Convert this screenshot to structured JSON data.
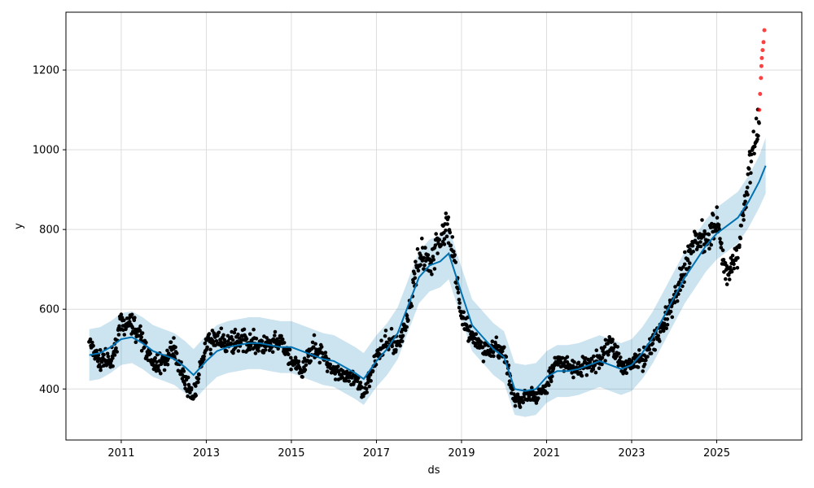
{
  "chart_data": {
    "type": "scatter",
    "xlabel": "ds",
    "ylabel": "y",
    "xlim": [
      2009.7,
      2027.0
    ],
    "ylim": [
      272,
      1345
    ],
    "x_ticks": [
      {
        "value": 2011,
        "label": "2011"
      },
      {
        "value": 2013,
        "label": "2013"
      },
      {
        "value": 2015,
        "label": "2015"
      },
      {
        "value": 2017,
        "label": "2017"
      },
      {
        "value": 2019,
        "label": "2019"
      },
      {
        "value": 2021,
        "label": "2021"
      },
      {
        "value": 2023,
        "label": "2023"
      },
      {
        "value": 2025,
        "label": "2025"
      }
    ],
    "y_ticks": [
      {
        "value": 400,
        "label": "400"
      },
      {
        "value": 600,
        "label": "600"
      },
      {
        "value": 800,
        "label": "800"
      },
      {
        "value": 1000,
        "label": "1000"
      },
      {
        "value": 1200,
        "label": "1200"
      }
    ],
    "grid": true,
    "colors": {
      "observed": "#000000",
      "outlier": "#ff0000",
      "forecast_line": "#0072b2",
      "interval": "#0072b2"
    },
    "forecast": {
      "x": [
        2010.25,
        2010.5,
        2010.75,
        2011.0,
        2011.25,
        2011.5,
        2011.75,
        2012.0,
        2012.25,
        2012.5,
        2012.7,
        2013.0,
        2013.25,
        2013.5,
        2013.75,
        2014.0,
        2014.25,
        2014.5,
        2014.75,
        2015.0,
        2015.25,
        2015.5,
        2015.75,
        2016.0,
        2016.25,
        2016.5,
        2016.7,
        2017.0,
        2017.25,
        2017.5,
        2017.75,
        2018.0,
        2018.25,
        2018.5,
        2018.7,
        2019.0,
        2019.25,
        2019.5,
        2019.75,
        2020.0,
        2020.25,
        2020.5,
        2020.75,
        2021.0,
        2021.25,
        2021.5,
        2021.75,
        2022.0,
        2022.25,
        2022.5,
        2022.75,
        2023.0,
        2023.25,
        2023.5,
        2023.75,
        2024.0,
        2024.25,
        2024.5,
        2024.75,
        2025.0,
        2025.25,
        2025.5,
        2025.75,
        2026.0,
        2026.15
      ],
      "yhat": [
        485,
        490,
        505,
        525,
        530,
        515,
        495,
        485,
        475,
        455,
        435,
        470,
        495,
        505,
        510,
        515,
        515,
        510,
        505,
        505,
        495,
        485,
        475,
        470,
        455,
        440,
        425,
        470,
        500,
        540,
        610,
        680,
        710,
        720,
        740,
        640,
        560,
        530,
        500,
        480,
        400,
        395,
        400,
        430,
        445,
        445,
        450,
        460,
        470,
        460,
        450,
        460,
        490,
        530,
        580,
        630,
        680,
        720,
        760,
        790,
        810,
        830,
        870,
        920,
        960
      ],
      "lower": [
        420,
        425,
        440,
        460,
        465,
        450,
        430,
        420,
        410,
        390,
        370,
        405,
        430,
        440,
        445,
        450,
        450,
        445,
        440,
        440,
        430,
        420,
        410,
        405,
        390,
        375,
        360,
        405,
        435,
        475,
        545,
        615,
        645,
        655,
        675,
        575,
        495,
        465,
        435,
        415,
        335,
        330,
        335,
        365,
        380,
        380,
        385,
        395,
        405,
        395,
        385,
        395,
        425,
        465,
        515,
        565,
        615,
        655,
        695,
        725,
        745,
        765,
        805,
        855,
        890
      ],
      "upper": [
        550,
        555,
        570,
        590,
        595,
        580,
        560,
        550,
        540,
        520,
        500,
        535,
        560,
        570,
        575,
        580,
        580,
        575,
        570,
        570,
        560,
        550,
        540,
        535,
        520,
        505,
        490,
        535,
        565,
        605,
        675,
        745,
        775,
        785,
        805,
        705,
        625,
        595,
        565,
        545,
        465,
        460,
        465,
        495,
        510,
        510,
        515,
        525,
        535,
        525,
        515,
        525,
        555,
        595,
        645,
        695,
        745,
        785,
        825,
        855,
        875,
        895,
        935,
        985,
        1030
      ]
    },
    "observed": {
      "x": [
        2010.25,
        2010.5,
        2010.75,
        2011.0,
        2011.25,
        2011.5,
        2011.75,
        2012.0,
        2012.25,
        2012.5,
        2012.7,
        2013.0,
        2013.25,
        2013.5,
        2013.75,
        2014.0,
        2014.25,
        2014.5,
        2014.75,
        2015.0,
        2015.25,
        2015.5,
        2015.75,
        2016.0,
        2016.25,
        2016.5,
        2016.7,
        2017.0,
        2017.25,
        2017.5,
        2017.75,
        2018.0,
        2018.25,
        2018.5,
        2018.7,
        2019.0,
        2019.25,
        2019.5,
        2019.75,
        2020.0,
        2020.25,
        2020.5,
        2020.75,
        2021.0,
        2021.25,
        2021.5,
        2021.75,
        2022.0,
        2022.25,
        2022.5,
        2022.75,
        2023.0,
        2023.25,
        2023.5,
        2023.75,
        2024.0,
        2024.25,
        2024.5,
        2024.75,
        2025.0,
        2025.25,
        2025.5,
        2025.75,
        2026.0
      ],
      "y": [
        520,
        470,
        470,
        560,
        570,
        520,
        460,
        470,
        500,
        420,
        380,
        510,
        530,
        510,
        520,
        520,
        510,
        505,
        520,
        470,
        440,
        510,
        480,
        450,
        430,
        420,
        390,
        480,
        520,
        510,
        580,
        740,
        720,
        780,
        820,
        580,
        530,
        500,
        500,
        490,
        370,
        380,
        380,
        410,
        470,
        455,
        450,
        460,
        470,
        520,
        460,
        465,
        475,
        520,
        560,
        620,
        700,
        780,
        780,
        820,
        680,
        750,
        940,
        1070
      ]
    },
    "outliers": {
      "x": [
        2026.0,
        2026.02,
        2026.04,
        2026.05,
        2026.06,
        2026.08,
        2026.1,
        2026.12
      ],
      "y": [
        1100,
        1140,
        1180,
        1210,
        1230,
        1250,
        1270,
        1300
      ]
    }
  }
}
